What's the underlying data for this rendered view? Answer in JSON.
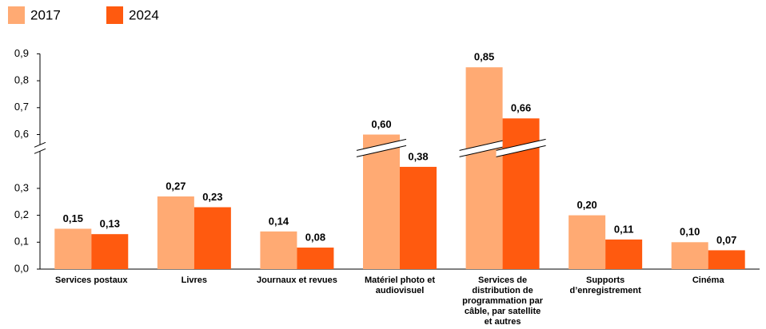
{
  "chart_data": {
    "type": "bar",
    "categories": [
      "Services postaux",
      "Livres",
      "Journaux et revues",
      "Matériel photo et audiovisuel",
      "Services de distribution de programmation par câble, par satellite et autres",
      "Supports d’enregistrement",
      "Cinéma"
    ],
    "series": [
      {
        "name": "2017",
        "color": "#ffaa73",
        "values": [
          0.15,
          0.27,
          0.14,
          0.6,
          0.85,
          0.2,
          0.1
        ],
        "value_labels": [
          "0,15",
          "0,27",
          "0,14",
          "0,60",
          "0,85",
          "0,20",
          "0,10"
        ]
      },
      {
        "name": "2024",
        "color": "#ff5a0f",
        "values": [
          0.13,
          0.23,
          0.08,
          0.38,
          0.66,
          0.11,
          0.07
        ],
        "value_labels": [
          "0,13",
          "0,23",
          "0,08",
          "0,38",
          "0,66",
          "0,11",
          "0,07"
        ]
      }
    ],
    "ylim": [
      0,
      0.9
    ],
    "yticks": [
      {
        "value": 0,
        "label": "0,0"
      },
      {
        "value": 0.1,
        "label": "0,1"
      },
      {
        "value": 0.2,
        "label": "0,2"
      },
      {
        "value": 0.3,
        "label": "0,3"
      },
      {
        "value": 0.6,
        "label": "0,6"
      },
      {
        "value": 0.7,
        "label": "0,7"
      },
      {
        "value": 0.8,
        "label": "0,8"
      },
      {
        "value": 0.9,
        "label": "0,9"
      }
    ],
    "axis_break": true,
    "grid": false,
    "legend": "top-left"
  }
}
